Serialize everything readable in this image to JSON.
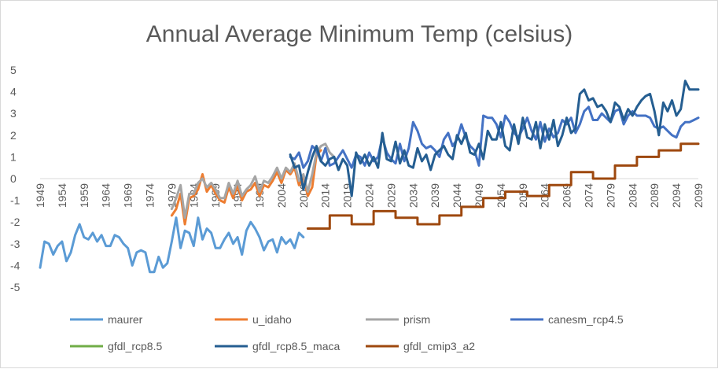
{
  "chart_data": {
    "type": "line",
    "title": "Annual Average Minimum Temp (celsius)",
    "xlabel": "",
    "ylabel": "",
    "ylim": [
      -5,
      5
    ],
    "yticks": [
      -5,
      -4,
      -3,
      -2,
      -1,
      0,
      1,
      2,
      3,
      4,
      5
    ],
    "xlim": [
      1949,
      2099
    ],
    "xticks": [
      1949,
      1954,
      1959,
      1964,
      1969,
      1974,
      1979,
      1984,
      1989,
      1994,
      1999,
      2004,
      2009,
      2014,
      2019,
      2024,
      2029,
      2034,
      2039,
      2044,
      2049,
      2054,
      2059,
      2064,
      2069,
      2074,
      2079,
      2084,
      2089,
      2094,
      2099
    ],
    "grid": false,
    "legend_position": "bottom",
    "series": [
      {
        "name": "maurer",
        "color": "#5b9bd5",
        "x": [
          1949,
          1950,
          1951,
          1952,
          1953,
          1954,
          1955,
          1956,
          1957,
          1958,
          1959,
          1960,
          1961,
          1962,
          1963,
          1964,
          1965,
          1966,
          1967,
          1968,
          1969,
          1970,
          1971,
          1972,
          1973,
          1974,
          1975,
          1976,
          1977,
          1978,
          1979,
          1980,
          1981,
          1982,
          1983,
          1984,
          1985,
          1986,
          1987,
          1988,
          1989,
          1990,
          1991,
          1992,
          1993,
          1994,
          1995,
          1996,
          1997,
          1998,
          1999,
          2000,
          2001,
          2002,
          2003,
          2004,
          2005,
          2006,
          2007,
          2008,
          2009,
          2010
        ],
        "y": [
          -4.1,
          -2.9,
          -3.0,
          -3.5,
          -3.1,
          -2.9,
          -3.8,
          -3.4,
          -2.6,
          -2.1,
          -2.7,
          -2.8,
          -2.5,
          -2.9,
          -2.6,
          -3.1,
          -3.1,
          -2.6,
          -2.7,
          -3.0,
          -3.2,
          -4.0,
          -3.4,
          -3.3,
          -3.4,
          -4.3,
          -4.3,
          -3.6,
          -4.1,
          -3.9,
          -2.9,
          -1.8,
          -3.2,
          -2.4,
          -2.5,
          -3.1,
          -1.8,
          -2.8,
          -2.3,
          -2.5,
          -3.2,
          -3.2,
          -2.8,
          -2.5,
          -3.0,
          -2.7,
          -3.5,
          -2.4,
          -2.0,
          -2.3,
          -2.7,
          -3.3,
          -2.9,
          -2.8,
          -3.4,
          -2.7,
          -3.0,
          -2.8,
          -3.2,
          -2.5,
          -2.7,
          null
        ]
      },
      {
        "name": "u_idaho",
        "color": "#ed7d31",
        "x": [
          1979,
          1980,
          1981,
          1982,
          1983,
          1984,
          1985,
          1986,
          1987,
          1988,
          1989,
          1990,
          1991,
          1992,
          1993,
          1994,
          1995,
          1996,
          1997,
          1998,
          1999,
          2000,
          2001,
          2002,
          2003,
          2004,
          2005,
          2006,
          2007,
          2008,
          2009,
          2010,
          2011,
          2012,
          2013
        ],
        "y": [
          -1.7,
          -1.4,
          -0.7,
          -2.1,
          -0.9,
          -0.8,
          -0.5,
          0.2,
          -0.6,
          -0.3,
          -0.7,
          -1.0,
          -1.1,
          -0.4,
          -0.9,
          -0.3,
          -1.0,
          -0.6,
          -0.5,
          -0.2,
          -0.8,
          -0.3,
          -0.4,
          -0.1,
          0.3,
          -0.2,
          0.4,
          0.2,
          0.5,
          -0.3,
          0.1,
          -0.8,
          -0.4,
          1.1,
          1.3
        ]
      },
      {
        "name": "prism",
        "color": "#a5a5a5",
        "x": [
          1979,
          1980,
          1981,
          1982,
          1983,
          1984,
          1985,
          1986,
          1987,
          1988,
          1989,
          1990,
          1991,
          1992,
          1993,
          1994,
          1995,
          1996,
          1997,
          1998,
          1999,
          2000,
          2001,
          2002,
          2003,
          2004,
          2005,
          2006,
          2007,
          2008,
          2009,
          2010,
          2011,
          2012,
          2013,
          2014,
          2015,
          2016
        ],
        "y": [
          -1.4,
          -0.9,
          -0.3,
          -1.8,
          -0.7,
          -0.7,
          -0.2,
          0.0,
          -0.4,
          -0.2,
          -0.5,
          -0.9,
          -0.9,
          -0.2,
          -0.7,
          -0.1,
          -0.8,
          -0.5,
          -0.3,
          0.1,
          -0.6,
          -0.1,
          -0.2,
          0.1,
          0.5,
          0.0,
          0.5,
          0.3,
          0.7,
          -0.1,
          0.2,
          -0.6,
          0.2,
          1.2,
          1.5,
          1.6,
          1.2,
          1.0
        ]
      },
      {
        "name": "canesm_rcp4.5",
        "color": "#4472c4",
        "x": [
          2006,
          2007,
          2008,
          2009,
          2010,
          2011,
          2012,
          2013,
          2014,
          2015,
          2016,
          2017,
          2018,
          2019,
          2020,
          2021,
          2022,
          2023,
          2024,
          2025,
          2026,
          2027,
          2028,
          2029,
          2030,
          2031,
          2032,
          2033,
          2034,
          2035,
          2036,
          2037,
          2038,
          2039,
          2040,
          2041,
          2042,
          2043,
          2044,
          2045,
          2046,
          2047,
          2048,
          2049,
          2050,
          2051,
          2052,
          2053,
          2054,
          2055,
          2056,
          2057,
          2058,
          2059,
          2060,
          2061,
          2062,
          2063,
          2064,
          2065,
          2066,
          2067,
          2068,
          2069,
          2070,
          2071,
          2072,
          2073,
          2074,
          2075,
          2076,
          2077,
          2078,
          2079,
          2080,
          2081,
          2082,
          2083,
          2084,
          2085,
          2086,
          2087,
          2088,
          2089,
          2090,
          2091,
          2092,
          2093,
          2094,
          2095,
          2096,
          2097,
          2098,
          2099
        ],
        "y": [
          1.0,
          0.9,
          1.2,
          0.5,
          0.8,
          1.5,
          1.3,
          0.8,
          1.4,
          0.6,
          0.7,
          1.0,
          1.3,
          0.9,
          0.5,
          1.1,
          1.0,
          0.6,
          1.2,
          0.8,
          1.0,
          1.9,
          1.2,
          0.9,
          0.7,
          1.6,
          0.8,
          1.4,
          2.6,
          2.2,
          1.6,
          1.4,
          1.5,
          1.3,
          1.0,
          1.8,
          2.1,
          1.5,
          1.8,
          2.5,
          1.9,
          1.5,
          1.3,
          0.6,
          2.9,
          2.8,
          2.8,
          2.5,
          1.9,
          2.9,
          2.6,
          2.1,
          1.9,
          2.3,
          2.8,
          2.2,
          1.8,
          2.6,
          1.7,
          2.3,
          1.9,
          2.1,
          2.7,
          2.5,
          2.8,
          2.1,
          2.5,
          3.1,
          3.3,
          2.7,
          2.7,
          3.0,
          2.8,
          2.6,
          3.1,
          3.2,
          2.5,
          2.9,
          3.1,
          2.9,
          2.9,
          2.9,
          2.8,
          2.4,
          2.3,
          2.4,
          2.2,
          2.0,
          1.9,
          2.4,
          2.6,
          2.6,
          2.7,
          2.8
        ]
      },
      {
        "name": "gfdl_rcp8.5",
        "color": "#70ad47",
        "x": [],
        "y": []
      },
      {
        "name": "gfdl_rcp8.5_maca",
        "color": "#255e91",
        "x": [
          2006,
          2007,
          2008,
          2009,
          2010,
          2011,
          2012,
          2013,
          2014,
          2015,
          2016,
          2017,
          2018,
          2019,
          2020,
          2021,
          2022,
          2023,
          2024,
          2025,
          2026,
          2027,
          2028,
          2029,
          2030,
          2031,
          2032,
          2033,
          2034,
          2035,
          2036,
          2037,
          2038,
          2039,
          2040,
          2041,
          2042,
          2043,
          2044,
          2045,
          2046,
          2047,
          2048,
          2049,
          2050,
          2051,
          2052,
          2053,
          2054,
          2055,
          2056,
          2057,
          2058,
          2059,
          2060,
          2061,
          2062,
          2063,
          2064,
          2065,
          2066,
          2067,
          2068,
          2069,
          2070,
          2071,
          2072,
          2073,
          2074,
          2075,
          2076,
          2077,
          2078,
          2079,
          2080,
          2081,
          2082,
          2083,
          2084,
          2085,
          2086,
          2087,
          2088,
          2089,
          2090,
          2091,
          2092,
          2093,
          2094,
          2095,
          2096,
          2097,
          2098,
          2099
        ],
        "y": [
          1.1,
          0.5,
          0.6,
          -0.5,
          0.3,
          1.0,
          1.5,
          0.8,
          0.6,
          0.9,
          1.0,
          0.4,
          0.9,
          0.6,
          -0.8,
          1.2,
          0.7,
          1.1,
          0.6,
          1.0,
          0.5,
          2.1,
          0.9,
          0.8,
          1.7,
          0.7,
          1.3,
          0.6,
          0.5,
          1.4,
          0.8,
          1.1,
          0.4,
          1.1,
          1.3,
          1.5,
          1.1,
          0.9,
          2.0,
          1.6,
          2.1,
          1.2,
          1.1,
          1.6,
          0.9,
          2.2,
          1.8,
          1.8,
          2.6,
          1.5,
          1.3,
          2.5,
          1.6,
          2.8,
          1.9,
          1.8,
          2.6,
          1.4,
          2.5,
          1.8,
          2.7,
          1.5,
          2.0,
          2.8,
          2.1,
          2.3,
          3.9,
          4.1,
          3.6,
          3.7,
          3.3,
          3.4,
          3.1,
          2.6,
          3.5,
          3.3,
          2.7,
          3.2,
          2.9,
          3.3,
          3.6,
          3.8,
          3.9,
          3.1,
          2.0,
          3.5,
          3.1,
          3.6,
          2.9,
          3.2,
          4.5,
          4.1,
          4.1,
          4.1
        ]
      },
      {
        "name": "gfdl_cmip3_a2",
        "color": "#9e480e",
        "x": [
          2010,
          2011,
          2011,
          2015,
          2015,
          2020,
          2020,
          2025,
          2025,
          2030,
          2030,
          2035,
          2035,
          2040,
          2040,
          2045,
          2045,
          2050,
          2050,
          2055,
          2055,
          2060,
          2060,
          2065,
          2065,
          2070,
          2070,
          2075,
          2075,
          2080,
          2080,
          2085,
          2085,
          2090,
          2090,
          2095,
          2095,
          2099
        ],
        "y": [
          -2.3,
          -2.3,
          -2.3,
          -2.3,
          -1.7,
          -1.7,
          -2.1,
          -2.1,
          -1.5,
          -1.5,
          -1.8,
          -1.8,
          -2.1,
          -2.1,
          -1.7,
          -1.7,
          -1.3,
          -1.3,
          -0.9,
          -0.9,
          -0.6,
          -0.6,
          -0.8,
          -0.8,
          -0.3,
          -0.3,
          0.3,
          0.3,
          0.0,
          0.0,
          0.6,
          0.6,
          1.0,
          1.0,
          1.3,
          1.3,
          1.6,
          1.6
        ]
      }
    ]
  }
}
